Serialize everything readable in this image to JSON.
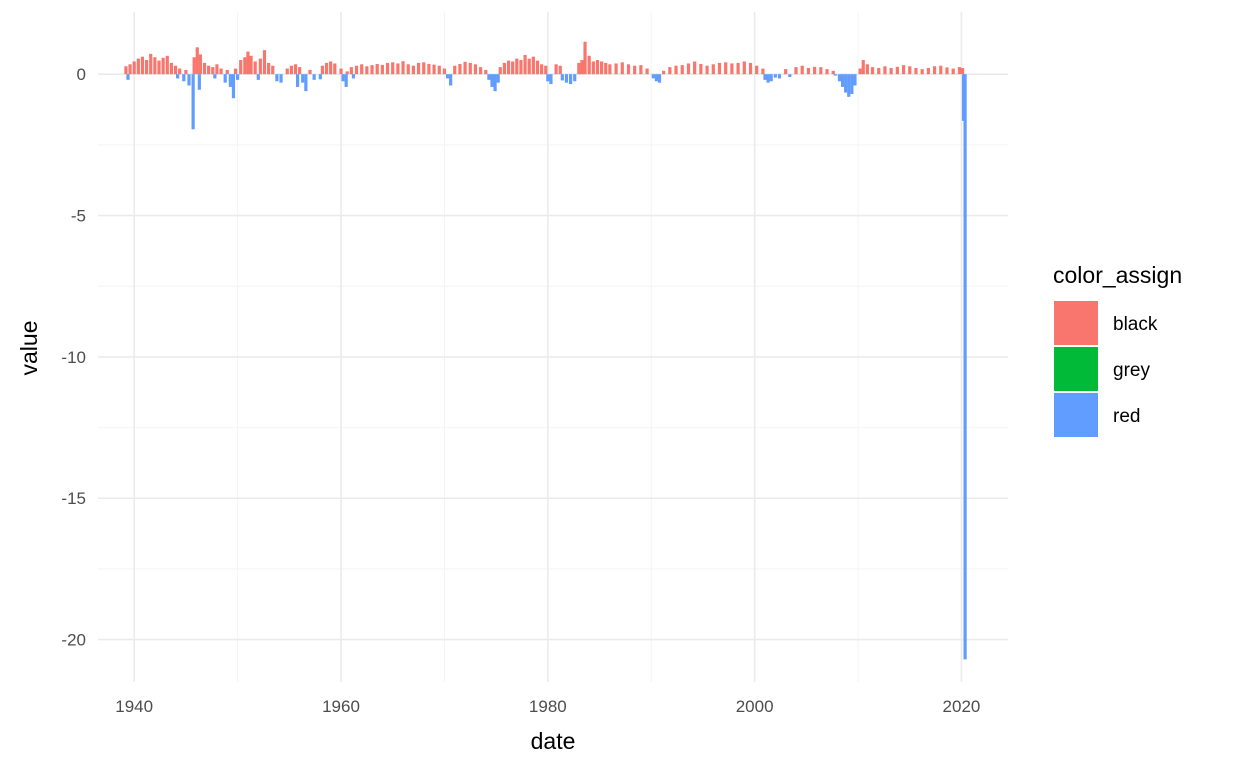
{
  "chart_data": {
    "type": "bar",
    "title": "",
    "xlabel": "date",
    "ylabel": "value",
    "xlim": [
      1936.5,
      2024.5
    ],
    "ylim": [
      -21.5,
      2.2
    ],
    "x_ticks": [
      1940,
      1960,
      1980,
      2000,
      2020
    ],
    "x_tick_labels": [
      "1940",
      "1960",
      "1980",
      "2000",
      "2020"
    ],
    "y_ticks": [
      0,
      -5,
      -10,
      -15,
      -20
    ],
    "y_tick_labels": [
      "0",
      "-5",
      "-10",
      "-15",
      "-20"
    ],
    "x_minor_ticks": [
      1950,
      1970,
      1990,
      2010
    ],
    "y_minor_ticks": [
      -2.5,
      -7.5,
      -12.5,
      -17.5
    ],
    "grid": true,
    "legend": {
      "title": "color_assign",
      "position": "right",
      "entries": [
        {
          "label": "black",
          "color": "#F8766D"
        },
        {
          "label": "grey",
          "color": "#00BA38"
        },
        {
          "label": "red",
          "color": "#619CFF"
        }
      ]
    },
    "series": [
      {
        "name": "black",
        "color": "#F8766D",
        "points": [
          [
            1939.2,
            0.28
          ],
          [
            1939.6,
            0.35
          ],
          [
            1940.0,
            0.45
          ],
          [
            1940.4,
            0.55
          ],
          [
            1940.8,
            0.62
          ],
          [
            1941.2,
            0.5
          ],
          [
            1941.6,
            0.72
          ],
          [
            1942.0,
            0.6
          ],
          [
            1942.4,
            0.48
          ],
          [
            1942.8,
            0.58
          ],
          [
            1943.2,
            0.65
          ],
          [
            1943.6,
            0.4
          ],
          [
            1944.0,
            0.3
          ],
          [
            1944.4,
            0.2
          ],
          [
            1945.0,
            0.15
          ],
          [
            1945.8,
            0.6
          ],
          [
            1946.1,
            0.95
          ],
          [
            1946.4,
            0.7
          ],
          [
            1946.8,
            0.4
          ],
          [
            1947.2,
            0.3
          ],
          [
            1947.6,
            0.25
          ],
          [
            1948.0,
            0.35
          ],
          [
            1948.4,
            0.2
          ],
          [
            1949.0,
            0.15
          ],
          [
            1949.8,
            0.2
          ],
          [
            1950.3,
            0.5
          ],
          [
            1950.7,
            0.6
          ],
          [
            1951.0,
            0.8
          ],
          [
            1951.3,
            0.65
          ],
          [
            1951.7,
            0.45
          ],
          [
            1952.2,
            0.55
          ],
          [
            1952.6,
            0.85
          ],
          [
            1953.0,
            0.4
          ],
          [
            1953.4,
            0.3
          ],
          [
            1954.8,
            0.2
          ],
          [
            1955.2,
            0.3
          ],
          [
            1955.6,
            0.35
          ],
          [
            1956.0,
            0.25
          ],
          [
            1957.0,
            0.15
          ],
          [
            1958.2,
            0.3
          ],
          [
            1958.6,
            0.4
          ],
          [
            1959.0,
            0.45
          ],
          [
            1959.4,
            0.38
          ],
          [
            1960.0,
            0.2
          ],
          [
            1960.6,
            0.1
          ],
          [
            1961.0,
            0.25
          ],
          [
            1961.5,
            0.3
          ],
          [
            1962.0,
            0.35
          ],
          [
            1962.5,
            0.28
          ],
          [
            1963.0,
            0.32
          ],
          [
            1963.5,
            0.36
          ],
          [
            1964.0,
            0.33
          ],
          [
            1964.5,
            0.4
          ],
          [
            1965.0,
            0.42
          ],
          [
            1965.5,
            0.38
          ],
          [
            1966.0,
            0.46
          ],
          [
            1966.5,
            0.35
          ],
          [
            1967.0,
            0.3
          ],
          [
            1967.5,
            0.4
          ],
          [
            1968.0,
            0.42
          ],
          [
            1968.5,
            0.36
          ],
          [
            1969.0,
            0.34
          ],
          [
            1969.5,
            0.3
          ],
          [
            1970.0,
            0.2
          ],
          [
            1971.0,
            0.3
          ],
          [
            1971.5,
            0.36
          ],
          [
            1972.0,
            0.44
          ],
          [
            1972.5,
            0.4
          ],
          [
            1973.0,
            0.35
          ],
          [
            1973.5,
            0.25
          ],
          [
            1974.0,
            0.15
          ],
          [
            1975.4,
            0.25
          ],
          [
            1975.8,
            0.4
          ],
          [
            1976.2,
            0.48
          ],
          [
            1976.6,
            0.45
          ],
          [
            1977.0,
            0.55
          ],
          [
            1977.4,
            0.5
          ],
          [
            1977.8,
            0.68
          ],
          [
            1978.2,
            0.55
          ],
          [
            1978.6,
            0.62
          ],
          [
            1979.0,
            0.48
          ],
          [
            1979.4,
            0.35
          ],
          [
            1979.8,
            0.3
          ],
          [
            1980.8,
            0.35
          ],
          [
            1981.2,
            0.3
          ],
          [
            1983.0,
            0.4
          ],
          [
            1983.3,
            0.5
          ],
          [
            1983.6,
            1.15
          ],
          [
            1984.0,
            0.65
          ],
          [
            1984.4,
            0.45
          ],
          [
            1984.8,
            0.5
          ],
          [
            1985.2,
            0.45
          ],
          [
            1985.6,
            0.4
          ],
          [
            1986.0,
            0.35
          ],
          [
            1986.6,
            0.38
          ],
          [
            1987.2,
            0.42
          ],
          [
            1987.8,
            0.35
          ],
          [
            1988.4,
            0.3
          ],
          [
            1989.0,
            0.32
          ],
          [
            1989.6,
            0.2
          ],
          [
            1991.2,
            0.12
          ],
          [
            1991.8,
            0.25
          ],
          [
            1992.4,
            0.3
          ],
          [
            1993.0,
            0.32
          ],
          [
            1993.6,
            0.38
          ],
          [
            1994.2,
            0.45
          ],
          [
            1994.8,
            0.36
          ],
          [
            1995.4,
            0.3
          ],
          [
            1996.0,
            0.35
          ],
          [
            1996.6,
            0.4
          ],
          [
            1997.2,
            0.42
          ],
          [
            1997.8,
            0.38
          ],
          [
            1998.4,
            0.4
          ],
          [
            1999.0,
            0.45
          ],
          [
            1999.6,
            0.4
          ],
          [
            2000.2,
            0.3
          ],
          [
            2000.8,
            0.2
          ],
          [
            2003.0,
            0.18
          ],
          [
            2004.0,
            0.25
          ],
          [
            2004.6,
            0.3
          ],
          [
            2005.2,
            0.22
          ],
          [
            2005.8,
            0.26
          ],
          [
            2006.4,
            0.25
          ],
          [
            2007.0,
            0.18
          ],
          [
            2007.6,
            0.12
          ],
          [
            2010.2,
            0.2
          ],
          [
            2010.5,
            0.5
          ],
          [
            2010.9,
            0.35
          ],
          [
            2011.4,
            0.25
          ],
          [
            2012.0,
            0.22
          ],
          [
            2012.6,
            0.28
          ],
          [
            2013.2,
            0.22
          ],
          [
            2013.8,
            0.26
          ],
          [
            2014.4,
            0.32
          ],
          [
            2015.0,
            0.28
          ],
          [
            2015.6,
            0.22
          ],
          [
            2016.2,
            0.18
          ],
          [
            2016.8,
            0.22
          ],
          [
            2017.4,
            0.28
          ],
          [
            2018.0,
            0.3
          ],
          [
            2018.6,
            0.24
          ],
          [
            2019.2,
            0.2
          ],
          [
            2019.8,
            0.25
          ],
          [
            2020.1,
            0.22
          ]
        ]
      },
      {
        "name": "red",
        "color": "#619CFF",
        "points": [
          [
            1939.4,
            -0.2
          ],
          [
            1944.2,
            -0.15
          ],
          [
            1944.8,
            -0.25
          ],
          [
            1945.3,
            -0.4
          ],
          [
            1945.7,
            -1.95
          ],
          [
            1946.3,
            -0.55
          ],
          [
            1947.8,
            -0.15
          ],
          [
            1948.8,
            -0.3
          ],
          [
            1949.3,
            -0.45
          ],
          [
            1949.6,
            -0.85
          ],
          [
            1950.0,
            -0.2
          ],
          [
            1952.0,
            -0.2
          ],
          [
            1953.8,
            -0.25
          ],
          [
            1954.2,
            -0.3
          ],
          [
            1955.8,
            -0.45
          ],
          [
            1956.3,
            -0.3
          ],
          [
            1956.6,
            -0.6
          ],
          [
            1957.4,
            -0.2
          ],
          [
            1958.0,
            -0.18
          ],
          [
            1960.2,
            -0.25
          ],
          [
            1960.5,
            -0.45
          ],
          [
            1961.2,
            -0.15
          ],
          [
            1970.3,
            -0.15
          ],
          [
            1970.6,
            -0.4
          ],
          [
            1974.3,
            -0.2
          ],
          [
            1974.6,
            -0.45
          ],
          [
            1974.9,
            -0.6
          ],
          [
            1975.2,
            -0.3
          ],
          [
            1980.0,
            -0.25
          ],
          [
            1980.3,
            -0.35
          ],
          [
            1981.4,
            -0.22
          ],
          [
            1981.8,
            -0.3
          ],
          [
            1982.2,
            -0.35
          ],
          [
            1982.6,
            -0.25
          ],
          [
            1990.2,
            -0.15
          ],
          [
            1990.5,
            -0.25
          ],
          [
            1990.8,
            -0.3
          ],
          [
            2001.0,
            -0.2
          ],
          [
            2001.3,
            -0.3
          ],
          [
            2001.6,
            -0.25
          ],
          [
            2002.0,
            -0.12
          ],
          [
            2002.4,
            -0.15
          ],
          [
            2003.4,
            -0.1
          ],
          [
            2007.8,
            -0.05
          ],
          [
            2008.2,
            -0.25
          ],
          [
            2008.5,
            -0.45
          ],
          [
            2008.8,
            -0.65
          ],
          [
            2009.1,
            -0.8
          ],
          [
            2009.4,
            -0.7
          ],
          [
            2009.7,
            -0.4
          ],
          [
            2020.2,
            -1.65
          ],
          [
            2020.35,
            -20.7
          ]
        ]
      }
    ]
  }
}
